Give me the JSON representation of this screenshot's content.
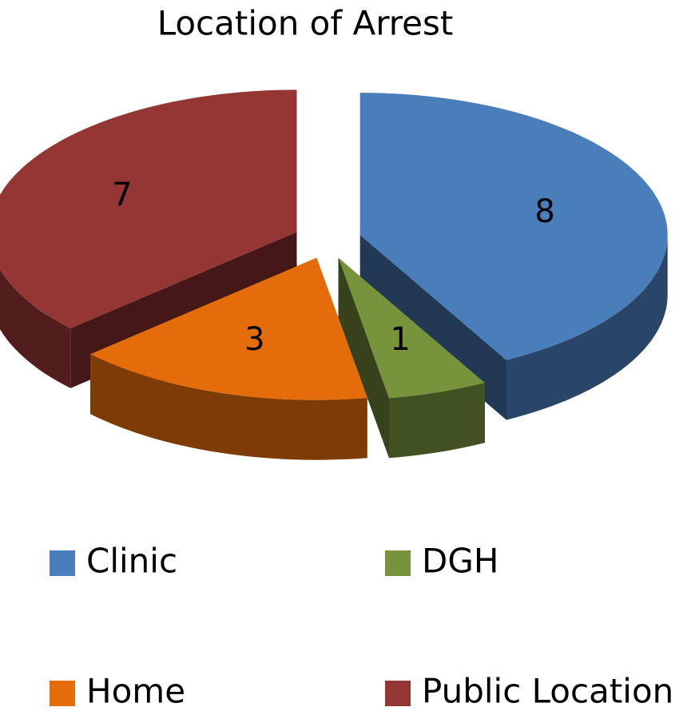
{
  "chart_data": {
    "type": "pie",
    "title": "Location of Arrest",
    "categories": [
      "Clinic",
      "DGH",
      "Home",
      "Public Location"
    ],
    "values": [
      8,
      1,
      3,
      7
    ],
    "colors": [
      "#4a7ebb",
      "#77933c",
      "#e46c0a",
      "#943634"
    ],
    "legend": "bottom"
  }
}
